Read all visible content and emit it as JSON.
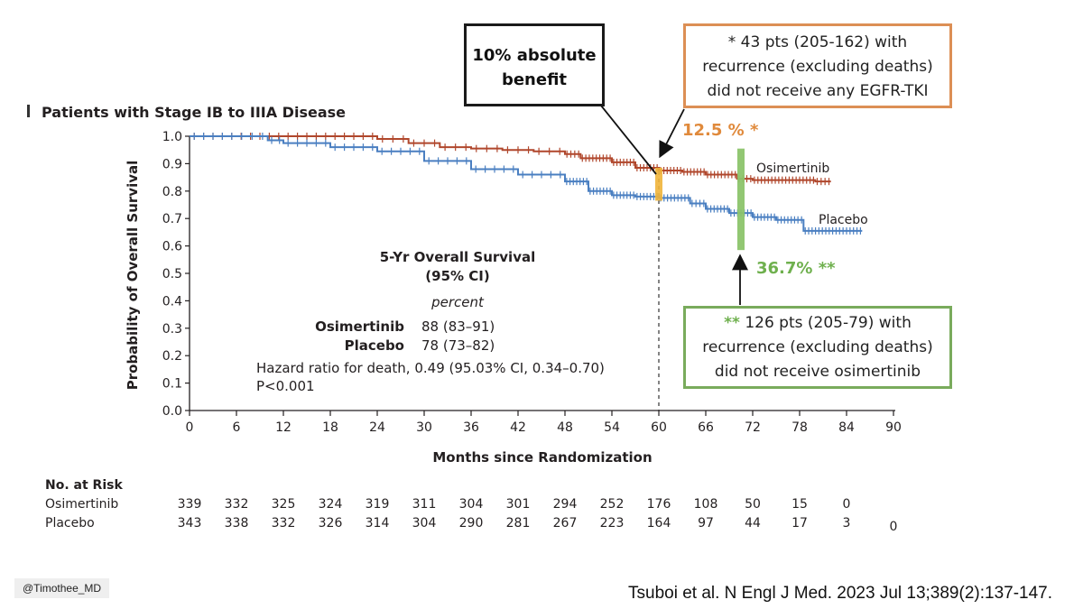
{
  "chart_data": {
    "type": "line",
    "title": "Patients with Stage IB to IIIA Disease",
    "xlabel": "Months since Randomization",
    "ylabel": "Probability of Overall Survival",
    "xlim": [
      0,
      90
    ],
    "ylim": [
      0,
      1.0
    ],
    "x_ticks": [
      "0",
      "6",
      "12",
      "18",
      "24",
      "30",
      "36",
      "42",
      "48",
      "54",
      "60",
      "66",
      "72",
      "78",
      "84",
      "90"
    ],
    "y_ticks": [
      "0.0",
      "0.1",
      "0.2",
      "0.3",
      "0.4",
      "0.5",
      "0.6",
      "0.7",
      "0.8",
      "0.9",
      "1.0"
    ],
    "series": [
      {
        "name": "Osimertinib",
        "color": "#b0472c",
        "x": [
          0,
          6,
          12,
          18,
          24,
          28,
          32,
          36,
          40,
          44,
          48,
          50,
          54,
          57,
          60,
          63,
          66,
          70,
          72,
          76,
          80,
          82
        ],
        "y": [
          1.0,
          1.0,
          1.0,
          1.0,
          0.99,
          0.975,
          0.96,
          0.955,
          0.95,
          0.945,
          0.935,
          0.92,
          0.905,
          0.885,
          0.875,
          0.87,
          0.86,
          0.845,
          0.84,
          0.84,
          0.835,
          0.835
        ]
      },
      {
        "name": "Placebo",
        "color": "#4a7fc1",
        "x": [
          0,
          6,
          10,
          12,
          18,
          24,
          30,
          36,
          42,
          48,
          51,
          54,
          57,
          60,
          64,
          66,
          69,
          72,
          75,
          78,
          78.5,
          82,
          86
        ],
        "y": [
          1.0,
          1.0,
          0.985,
          0.975,
          0.96,
          0.945,
          0.91,
          0.88,
          0.86,
          0.835,
          0.8,
          0.785,
          0.78,
          0.775,
          0.755,
          0.735,
          0.72,
          0.705,
          0.695,
          0.695,
          0.655,
          0.655,
          0.655
        ]
      }
    ],
    "annotations": {
      "dashed_line_x": 60,
      "osimertinib_band_x": 60,
      "placebo_band_x": 70.5
    },
    "legend_box": {
      "heading": "5-Yr Overall Survival",
      "heading2": "(95% CI)",
      "unit": "percent",
      "rows": [
        {
          "name": "Osimertinib",
          "value": "88 (83–91)"
        },
        {
          "name": "Placebo",
          "value": "78 (73–82)"
        }
      ],
      "hazard": "Hazard ratio for death, 0.49 (95.03% CI, 0.34–0.70)",
      "pvalue": "P<0.001"
    },
    "risk_table": {
      "heading": "No. at Risk",
      "rows": [
        {
          "name": "Osimertinib",
          "values": [
            "339",
            "332",
            "325",
            "324",
            "319",
            "311",
            "304",
            "301",
            "294",
            "252",
            "176",
            "108",
            "50",
            "15",
            "0"
          ]
        },
        {
          "name": "Placebo",
          "values": [
            "343",
            "338",
            "332",
            "326",
            "314",
            "304",
            "290",
            "281",
            "267",
            "223",
            "164",
            "97",
            "44",
            "17",
            "3",
            "0"
          ]
        }
      ]
    }
  },
  "callouts": {
    "absolute_benefit": [
      "10% absolute",
      "benefit"
    ],
    "osi_recurrence": [
      "* 43 pts (205-162) with",
      "recurrence (excluding deaths)",
      "did not receive any EGFR-TKI"
    ],
    "pbo_recurrence_stars": "**",
    "pbo_recurrence_line1": " 126 pts (205-79) with",
    "pbo_recurrence_rest": [
      "recurrence (excluding deaths)",
      "did not receive osimertinib"
    ],
    "osi_percent": "12.5 % *",
    "pbo_percent": "36.7% **"
  },
  "footer": {
    "handle": "@Timothee_MD",
    "citation": "Tsuboi et al. N Engl J Med. 2023 Jul 13;389(2):137-147."
  },
  "colors": {
    "osimertinib": "#b0472c",
    "placebo": "#4a7fc1",
    "orange_band": "#f0b43a",
    "green_band": "#8cc46c"
  }
}
